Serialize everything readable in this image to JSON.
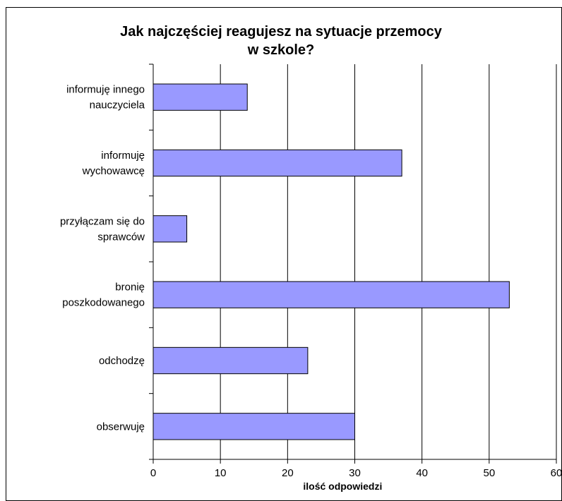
{
  "chart_data": {
    "type": "bar",
    "orientation": "horizontal",
    "title": "Jak najczęściej reagujesz na sytuacje przemocy\nw szkole?",
    "xlabel": "ilość odpowiedzi",
    "ylabel": "",
    "categories": [
      [
        "informuję innego",
        "nauczyciela"
      ],
      [
        "informuję",
        "wychowawcę"
      ],
      [
        "przyłączam się do",
        "sprawców"
      ],
      [
        "bronię",
        "poszkodowanego"
      ],
      [
        "odchodzę"
      ],
      [
        "obserwuję"
      ]
    ],
    "values": [
      14,
      37,
      5,
      53,
      23,
      30
    ],
    "xlim": [
      0,
      60
    ],
    "xticks": [
      "0",
      "10",
      "20",
      "30",
      "40",
      "50",
      "60"
    ],
    "grid": "vertical",
    "legend": "none",
    "bar_color": "#9999ff",
    "bar_border_color": "#000000"
  }
}
